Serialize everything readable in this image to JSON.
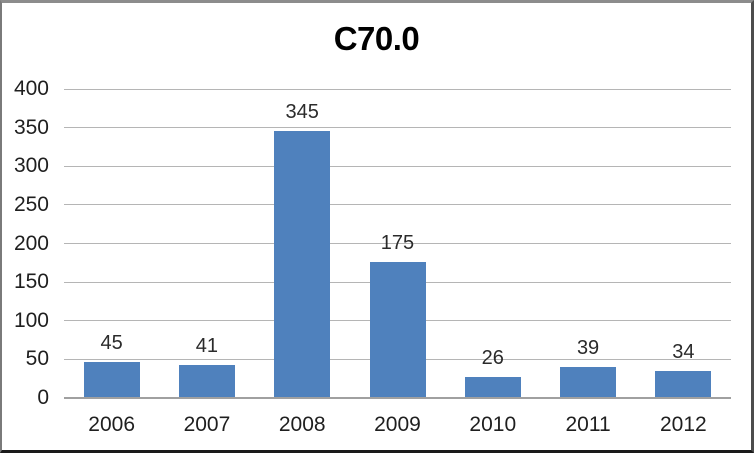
{
  "chart_data": {
    "type": "bar",
    "title": "C70.0",
    "categories": [
      "2006",
      "2007",
      "2008",
      "2009",
      "2010",
      "2011",
      "2012"
    ],
    "values": [
      45,
      41,
      345,
      175,
      26,
      39,
      34
    ],
    "xlabel": "",
    "ylabel": "",
    "ylim": [
      0,
      400
    ],
    "yticks": [
      0,
      50,
      100,
      150,
      200,
      250,
      300,
      350,
      400
    ],
    "grid": true,
    "legend_position": "none",
    "colors": {
      "bar": "#4f81bd",
      "gridline": "#b5b5b5",
      "axis_line": "#a0a0a0",
      "tick_text": "#1f1f1f",
      "value_text": "#2b2b2b",
      "title_text": "#000000",
      "background": "#ffffff"
    }
  }
}
